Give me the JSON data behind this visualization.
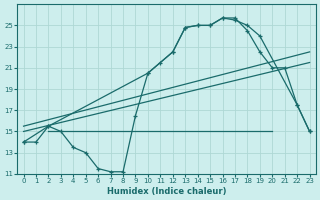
{
  "xlabel": "Humidex (Indice chaleur)",
  "bg_color": "#cdeeed",
  "grid_color": "#aed8d5",
  "line_color": "#1a6b6b",
  "xlim": [
    -0.5,
    23.5
  ],
  "ylim": [
    11,
    27
  ],
  "yticks": [
    11,
    13,
    15,
    17,
    19,
    21,
    23,
    25
  ],
  "xticks": [
    0,
    1,
    2,
    3,
    4,
    5,
    6,
    7,
    8,
    9,
    10,
    11,
    12,
    13,
    14,
    15,
    16,
    17,
    18,
    19,
    20,
    21,
    22,
    23
  ],
  "line1_x": [
    0,
    1,
    2,
    3,
    4,
    5,
    6,
    7,
    8,
    9,
    10,
    11,
    12,
    13,
    14,
    15,
    16,
    17,
    18,
    19,
    20,
    21,
    22,
    23
  ],
  "line1_y": [
    14,
    14,
    15.5,
    15,
    13.5,
    13,
    11.5,
    11.2,
    11.2,
    16.5,
    20.5,
    21.5,
    22.5,
    24.8,
    25,
    25,
    25.7,
    25.7,
    24.5,
    22.5,
    21,
    21,
    17.5,
    15
  ],
  "line2_x": [
    0,
    2,
    10,
    12,
    13,
    14,
    15,
    16,
    17,
    18,
    19,
    22,
    23
  ],
  "line2_y": [
    14,
    15.5,
    20.5,
    22.5,
    24.8,
    25,
    25,
    25.7,
    25.5,
    25,
    24,
    17.5,
    15
  ],
  "line3_x": [
    2,
    20
  ],
  "line3_y": [
    15,
    15
  ],
  "line4_x": [
    0,
    23
  ],
  "line4_y": [
    15.5,
    22.5
  ],
  "line5_x": [
    0,
    23
  ],
  "line5_y": [
    15,
    21.5
  ]
}
